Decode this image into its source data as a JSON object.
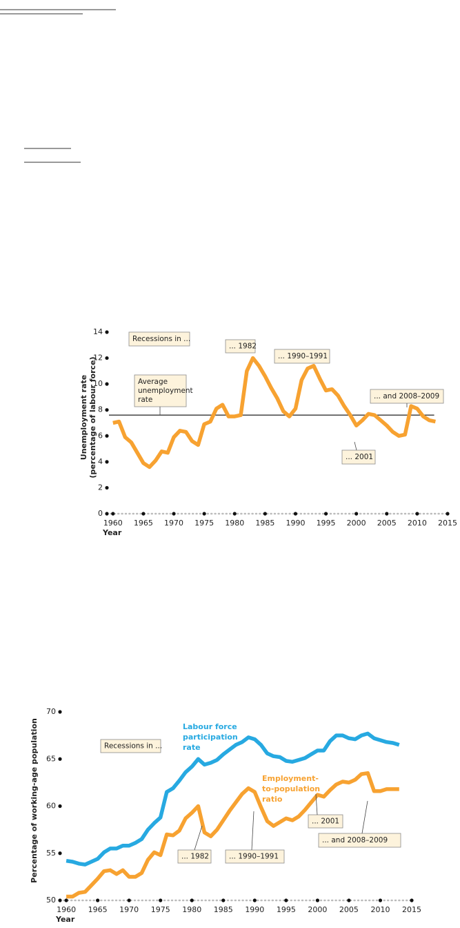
{
  "chart_data": [
    {
      "type": "line",
      "ylabel": [
        "Unemployment rate",
        "(percentage of labour force)"
      ],
      "xlabel": "Year",
      "xlim": [
        1959,
        2015
      ],
      "xticks": [
        1960,
        1965,
        1970,
        1975,
        1980,
        1985,
        1990,
        1995,
        2000,
        2005,
        2010,
        2015
      ],
      "ylim": [
        0,
        14
      ],
      "yticks": [
        0,
        2,
        4,
        6,
        8,
        10,
        12,
        14
      ],
      "x": [
        1960,
        1961,
        1962,
        1963,
        1964,
        1965,
        1966,
        1967,
        1968,
        1969,
        1970,
        1971,
        1972,
        1973,
        1974,
        1975,
        1976,
        1977,
        1978,
        1979,
        1980,
        1981,
        1982,
        1983,
        1984,
        1985,
        1986,
        1987,
        1988,
        1989,
        1990,
        1991,
        1992,
        1993,
        1994,
        1995,
        1996,
        1997,
        1998,
        1999,
        2000,
        2001,
        2002,
        2003,
        2004,
        2005,
        2006,
        2007,
        2008,
        2009,
        2010,
        2011,
        2012,
        2013
      ],
      "series": [
        {
          "color": "#f7a231",
          "values": [
            7.0,
            7.1,
            5.9,
            5.5,
            4.7,
            3.9,
            3.6,
            4.1,
            4.8,
            4.7,
            5.9,
            6.4,
            6.3,
            5.6,
            5.3,
            6.9,
            7.1,
            8.1,
            8.4,
            7.5,
            7.5,
            7.6,
            11.0,
            12.0,
            11.4,
            10.6,
            9.7,
            8.9,
            7.9,
            7.5,
            8.1,
            10.3,
            11.2,
            11.4,
            10.4,
            9.5,
            9.6,
            9.1,
            8.3,
            7.6,
            6.8,
            7.2,
            7.7,
            7.6,
            7.2,
            6.8,
            6.3,
            6.0,
            6.1,
            8.3,
            8.1,
            7.5,
            7.2,
            7.1
          ]
        }
      ],
      "average": 7.6,
      "annotations": [
        {
          "lines": [
            "Recessions in ..."
          ]
        },
        {
          "lines": [
            "... 1982"
          ]
        },
        {
          "lines": [
            "... 1990–1991"
          ]
        },
        {
          "lines": [
            "Average",
            "unemployment",
            "rate"
          ]
        },
        {
          "lines": [
            "... and 2008–2009"
          ]
        },
        {
          "lines": [
            "... 2001"
          ]
        }
      ]
    },
    {
      "type": "line",
      "ylabel": [
        "Percentage of working-age population"
      ],
      "xlabel": "Year",
      "xlim": [
        1959,
        2015
      ],
      "xticks": [
        1960,
        1965,
        1970,
        1975,
        1980,
        1985,
        1990,
        1995,
        2000,
        2005,
        2010,
        2015
      ],
      "ylim": [
        50,
        70
      ],
      "yticks": [
        50,
        55,
        60,
        65,
        70
      ],
      "x": [
        1960,
        1961,
        1962,
        1963,
        1964,
        1965,
        1966,
        1967,
        1968,
        1969,
        1970,
        1971,
        1972,
        1973,
        1974,
        1975,
        1976,
        1977,
        1978,
        1979,
        1980,
        1981,
        1982,
        1983,
        1984,
        1985,
        1986,
        1987,
        1988,
        1989,
        1990,
        1991,
        1992,
        1993,
        1994,
        1995,
        1996,
        1997,
        1998,
        1999,
        2000,
        2001,
        2002,
        2003,
        2004,
        2005,
        2006,
        2007,
        2008,
        2009,
        2010,
        2011,
        2012,
        2013
      ],
      "series": [
        {
          "name": [
            "Labour force",
            "participation",
            "rate"
          ],
          "color": "#27a9e1",
          "values": [
            54.2,
            54.1,
            53.9,
            53.8,
            54.1,
            54.4,
            55.1,
            55.5,
            55.5,
            55.8,
            55.8,
            56.1,
            56.5,
            57.5,
            58.2,
            58.8,
            61.5,
            61.9,
            62.7,
            63.6,
            64.2,
            65.0,
            64.4,
            64.6,
            64.9,
            65.5,
            66.0,
            66.5,
            66.8,
            67.3,
            67.1,
            66.5,
            65.6,
            65.3,
            65.2,
            64.8,
            64.7,
            64.9,
            65.1,
            65.5,
            65.9,
            65.9,
            66.9,
            67.5,
            67.5,
            67.2,
            67.1,
            67.5,
            67.7,
            67.2,
            67.0,
            66.8,
            66.7,
            66.5
          ]
        },
        {
          "name": [
            "Employment-",
            "to-population",
            "ratio"
          ],
          "color": "#f7a231",
          "values": [
            50.4,
            50.4,
            50.8,
            50.9,
            51.6,
            52.3,
            53.1,
            53.2,
            52.8,
            53.2,
            52.5,
            52.5,
            52.9,
            54.3,
            55.1,
            54.8,
            57.0,
            56.9,
            57.4,
            58.7,
            59.3,
            60.0,
            57.2,
            56.8,
            57.5,
            58.5,
            59.5,
            60.4,
            61.3,
            61.9,
            61.5,
            59.9,
            58.4,
            57.9,
            58.3,
            58.7,
            58.5,
            58.9,
            59.6,
            60.4,
            61.2,
            61.0,
            61.7,
            62.3,
            62.6,
            62.5,
            62.8,
            63.4,
            63.5,
            61.6,
            61.6,
            61.8,
            61.8,
            61.8
          ]
        }
      ],
      "annotations": [
        {
          "lines": [
            "Recessions in ..."
          ]
        },
        {
          "lines": [
            "... 1982"
          ]
        },
        {
          "lines": [
            "... 1990–1991"
          ]
        },
        {
          "lines": [
            "... 2001"
          ]
        },
        {
          "lines": [
            "... and 2008–2009"
          ]
        }
      ]
    }
  ]
}
